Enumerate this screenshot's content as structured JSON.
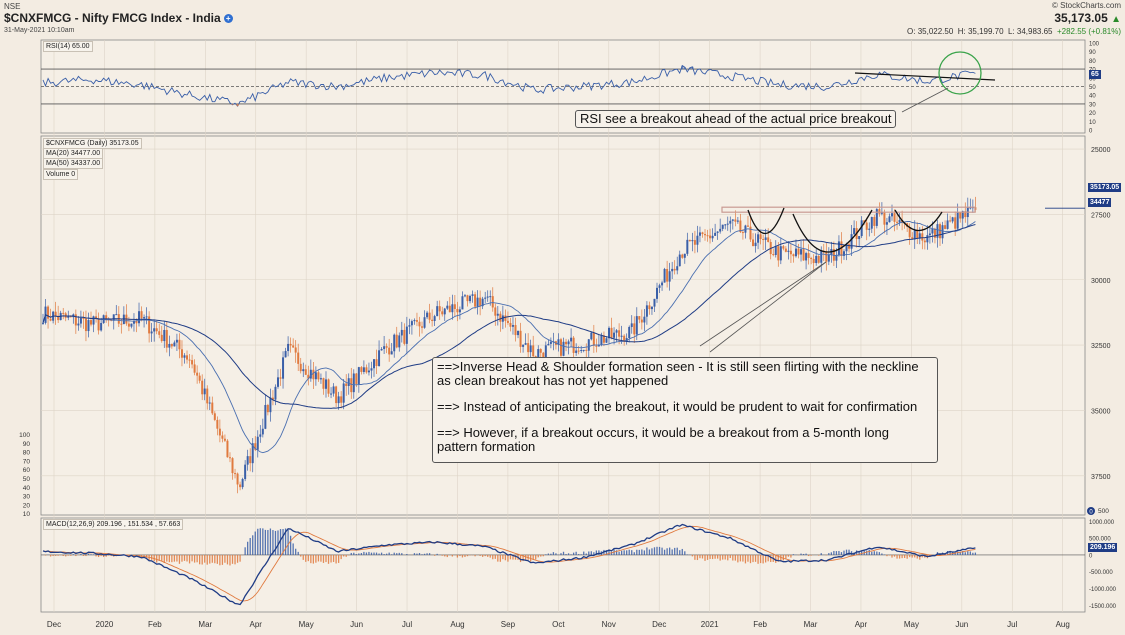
{
  "header": {
    "exchange": "NSE",
    "symbol_title": "$CNXFMCG - Nifty FMCG Index - India",
    "datetime": "31-May-2021 10:10am",
    "site": "© StockCharts.com",
    "last": "35,173.05",
    "open": "O: 35,022.50",
    "high": "H: 35,199.70",
    "low": "L: 34,983.65",
    "change": "+282.55 (+0.81%)"
  },
  "panels": {
    "rsi_label": "RSI(14) 65.00",
    "rsi_value_tag": "65",
    "rsi_ticks": [
      "100",
      "90",
      "80",
      "70",
      "60",
      "50",
      "40",
      "30",
      "20",
      "10",
      "0"
    ],
    "price_legend": [
      "$CNXFMCG (Daily) 35173.05",
      "MA(20) 34477.00",
      "MA(50) 34337.00",
      "Volume 0"
    ],
    "price_tag": "35173.05",
    "ma_tag": "34477",
    "price_ticks": [
      "37500",
      "35000",
      "32500",
      "30000",
      "27500",
      "25000"
    ],
    "volume_ticks": [
      "100",
      "90",
      "80",
      "70",
      "60",
      "50",
      "40",
      "30",
      "20",
      "10"
    ],
    "volume_tag": "0",
    "volume_bottom_tick": "500",
    "macd_label": "MACD(12,26,9) 209.196 , 151.534 , 57.663",
    "macd_tag": "209.196",
    "macd_ticks": [
      "1000.000",
      "500.000",
      "0",
      "-500.000",
      "-1000.000",
      "-1500.000"
    ]
  },
  "annotations": {
    "rsi": "RSI see a breakout ahead of the actual price breakout",
    "hs_1": "==>Inverse Head & Shoulder formation seen - It is still seen flirting with the neckline as clean breakout has not yet happened",
    "hs_2": "==> Instead of anticipating the breakout, it would be prudent to wait for confirmation",
    "hs_3": "==> However, if a breakout occurs, it would be a breakout from a 5-month long pattern formation"
  },
  "colors": {
    "background": "#f3ece2",
    "up": "#3a5fa8",
    "down": "#e07a3f",
    "ma20": "#4a6fb0",
    "ma50": "#1f3c85",
    "macd_line": "#1f3c85",
    "signal_line": "#e07a3f",
    "neckline": "#c99a93",
    "annotation_circle": "#3aa34a"
  },
  "chart_data": {
    "type": "line",
    "title": "$CNXFMCG - Nifty FMCG Index - India",
    "x_labels": [
      "Dec",
      "2020",
      "Feb",
      "Mar",
      "Apr",
      "May",
      "Jun",
      "Jul",
      "Aug",
      "Sep",
      "Oct",
      "Nov",
      "Dec",
      "2021",
      "Feb",
      "Mar",
      "Apr",
      "May",
      "Jun",
      "Jul",
      "Aug"
    ],
    "price_axis": {
      "ylim": [
        23500,
        38000
      ],
      "ticks": [
        25000,
        27500,
        30000,
        32500,
        35000,
        37500
      ],
      "position": "right"
    },
    "series": [
      {
        "name": "$CNXFMCG (Daily)",
        "x": [
          "2019-12",
          "2020-01",
          "2020-02",
          "2020-03",
          "2020-03-24",
          "2020-04",
          "2020-05",
          "2020-06",
          "2020-07",
          "2020-08",
          "2020-09",
          "2020-10",
          "2020-11",
          "2020-12",
          "2021-01",
          "2021-02",
          "2021-03",
          "2021-04",
          "2021-05",
          "2021-05-31"
        ],
        "values": [
          31200,
          30800,
          31000,
          29500,
          24600,
          29800,
          28000,
          29900,
          31200,
          31800,
          29700,
          30100,
          30500,
          33600,
          34600,
          33500,
          33300,
          35000,
          34100,
          35173.05
        ]
      },
      {
        "name": "MA(20)",
        "value_last": 34477.0
      },
      {
        "name": "MA(50)",
        "value_last": 34337.0
      }
    ],
    "neckline": 35200,
    "rsi": {
      "name": "RSI(14)",
      "last": 65.0,
      "ylim": [
        0,
        100
      ],
      "levels": [
        30,
        50,
        70
      ],
      "values": [
        54,
        58,
        52,
        40,
        30,
        55,
        50,
        60,
        66,
        63,
        46,
        50,
        55,
        70,
        62,
        52,
        50,
        64,
        56,
        65
      ]
    },
    "macd": {
      "name": "MACD(12,26,9)",
      "macd": 209.196,
      "signal": 151.534,
      "hist": 57.663,
      "ylim": [
        -1700,
        1100
      ],
      "values": [
        100,
        50,
        -50,
        -700,
        -1500,
        800,
        100,
        300,
        380,
        250,
        -250,
        -80,
        300,
        900,
        500,
        -200,
        -150,
        250,
        -50,
        209.196
      ]
    }
  }
}
